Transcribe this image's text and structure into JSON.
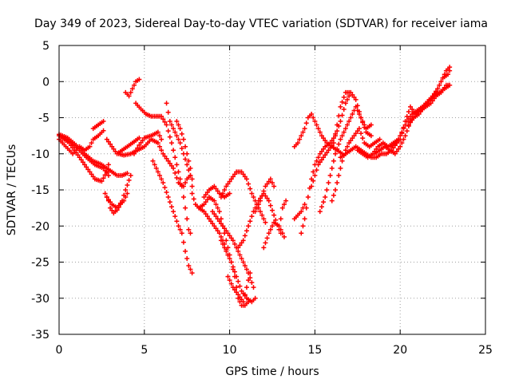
{
  "chart_data": {
    "type": "scatter",
    "title": "Day 349 of 2023, Sidereal Day-to-day VTEC variation (SDTVAR) for receiver iama",
    "xlabel": "GPS time / hours",
    "ylabel": "SDTVAR / TECUs",
    "xlim": [
      0,
      25
    ],
    "ylim": [
      -35,
      5
    ],
    "xticks": [
      0,
      5,
      10,
      15,
      20,
      25
    ],
    "yticks": [
      5,
      0,
      -5,
      -10,
      -15,
      -20,
      -25,
      -30,
      -35
    ],
    "grid": true,
    "marker": "plus",
    "color": "#ff0000",
    "series": [
      {
        "x": [
          0.0,
          0.3,
          0.6,
          0.9,
          1.2,
          1.5,
          1.8,
          2.1,
          2.5,
          2.8,
          2.9
        ],
        "y": [
          -7.5,
          -8.0,
          -8.5,
          -9.5,
          -10.5,
          -11.5,
          -12.5,
          -13.5,
          -13.8,
          -12.5,
          -11.5
        ]
      },
      {
        "x": [
          0.0,
          0.4,
          0.8,
          1.2,
          1.5,
          1.8,
          2.0,
          2.3,
          2.6
        ],
        "y": [
          -8.0,
          -9.0,
          -10.0,
          -9.0,
          -9.5,
          -9.0,
          -8.0,
          -7.5,
          -6.8
        ]
      },
      {
        "x": [
          2.0,
          2.3,
          2.6
        ],
        "y": [
          -6.5,
          -6.0,
          -5.5
        ]
      },
      {
        "x": [
          0.0,
          0.5,
          1.0,
          1.5,
          2.0,
          2.5,
          2.8,
          3.1,
          3.4,
          3.7,
          4.0
        ],
        "y": [
          -7.3,
          -7.8,
          -8.8,
          -10.0,
          -11.0,
          -11.5,
          -12.0,
          -12.5,
          -13.0,
          -13.0,
          -12.7
        ]
      },
      {
        "x": [
          0.1,
          0.6,
          1.1,
          1.6,
          2.1,
          2.6,
          2.9
        ],
        "y": [
          -7.5,
          -8.3,
          -9.3,
          -10.5,
          -11.5,
          -12.0,
          -13.0
        ]
      },
      {
        "x": [
          2.7,
          2.9,
          3.0,
          3.2,
          3.4,
          3.6,
          3.8,
          4.0
        ],
        "y": [
          -15.5,
          -16.5,
          -17.5,
          -18.2,
          -17.8,
          -17.0,
          -16.5,
          -15.5
        ]
      },
      {
        "x": [
          2.8,
          3.1,
          3.4,
          3.7,
          3.9,
          4.2
        ],
        "y": [
          -16.0,
          -17.0,
          -17.5,
          -16.5,
          -15.0,
          -13.0
        ]
      },
      {
        "x": [
          2.8,
          3.1,
          3.4,
          3.7,
          4.0,
          4.3,
          4.7
        ],
        "y": [
          -8.0,
          -9.0,
          -10.0,
          -9.5,
          -9.0,
          -8.5,
          -7.8
        ]
      },
      {
        "x": [
          3.5,
          3.8,
          4.2,
          4.6,
          5.0,
          5.4,
          5.8,
          6.1,
          6.4,
          6.7,
          7.0,
          7.3,
          7.5,
          7.7
        ],
        "y": [
          -10.0,
          -10.2,
          -10.0,
          -9.5,
          -9.0,
          -8.0,
          -8.5,
          -10.0,
          -11.0,
          -12.0,
          -14.0,
          -14.5,
          -13.5,
          -13.0
        ]
      },
      {
        "x": [
          4.4,
          4.7,
          5.0,
          5.4,
          5.8,
          6.0
        ],
        "y": [
          -10.0,
          -8.8,
          -7.8,
          -7.5,
          -7.0,
          -8.0
        ]
      },
      {
        "x": [
          3.9,
          4.1,
          4.3,
          4.5,
          4.7
        ],
        "y": [
          -1.5,
          -2.0,
          -1.0,
          0.0,
          0.3
        ]
      },
      {
        "x": [
          4.5,
          4.8,
          5.1,
          5.4,
          5.7,
          6.0,
          6.3,
          6.6,
          6.9,
          7.2,
          7.4,
          7.6,
          7.7
        ],
        "y": [
          -3.0,
          -3.8,
          -4.5,
          -4.8,
          -4.8,
          -4.8,
          -6.0,
          -8.5,
          -11.5,
          -14.5,
          -17.5,
          -20.5,
          -21.0
        ]
      },
      {
        "x": [
          5.5,
          5.8,
          6.1,
          6.4,
          6.7,
          7.0,
          7.2,
          7.4,
          7.6,
          7.8
        ],
        "y": [
          -11.0,
          -12.5,
          -14.0,
          -16.0,
          -18.0,
          -20.0,
          -21.0,
          -23.5,
          -25.5,
          -26.5
        ]
      },
      {
        "x": [
          6.3,
          6.5,
          6.7,
          6.9,
          7.1,
          7.3,
          7.5,
          7.7,
          7.8
        ],
        "y": [
          -3.0,
          -5.5,
          -6.5,
          -7.5,
          -8.5,
          -10.0,
          -11.5,
          -13.0,
          -14.5
        ]
      },
      {
        "x": [
          6.9,
          7.1,
          7.3,
          7.5,
          7.7,
          7.8
        ],
        "y": [
          -5.5,
          -6.5,
          -8.0,
          -10.0,
          -12.0,
          -13.5
        ]
      },
      {
        "x": [
          7.8,
          8.0,
          8.2,
          8.5,
          8.8,
          9.1,
          9.4,
          9.7,
          9.9
        ],
        "y": [
          -15.5,
          -17.0,
          -17.5,
          -18.0,
          -19.0,
          -20.0,
          -21.0,
          -22.5,
          -24.0
        ]
      },
      {
        "x": [
          8.2,
          8.5,
          8.8,
          9.1,
          9.4,
          9.7,
          10.0,
          10.3,
          10.5,
          10.7,
          10.9,
          11.1
        ],
        "y": [
          -17.5,
          -17.0,
          -16.0,
          -16.5,
          -18.0,
          -21.0,
          -24.0,
          -27.0,
          -30.0,
          -31.0,
          -31.0,
          -30.5
        ]
      },
      {
        "x": [
          8.5,
          8.8,
          9.1,
          9.4,
          9.7,
          10.0
        ],
        "y": [
          -16.0,
          -15.0,
          -14.5,
          -15.5,
          -16.0,
          -15.5
        ]
      },
      {
        "x": [
          9.0,
          9.3,
          9.6,
          9.9,
          10.2,
          10.5,
          10.8,
          11.1,
          11.4
        ],
        "y": [
          -18.0,
          -19.0,
          -20.0,
          -21.0,
          -22.0,
          -23.5,
          -25.0,
          -26.5,
          -28.5
        ]
      },
      {
        "x": [
          9.5,
          9.8,
          10.1,
          10.4,
          10.7,
          11.0,
          11.3,
          11.5
        ],
        "y": [
          -22.0,
          -23.5,
          -25.0,
          -27.0,
          -29.0,
          -30.0,
          -30.5,
          -30.0
        ]
      },
      {
        "x": [
          9.9,
          10.2,
          10.5,
          10.8,
          11.0,
          11.2
        ],
        "y": [
          -27.0,
          -28.5,
          -29.5,
          -30.5,
          -28.5,
          -26.5
        ]
      },
      {
        "x": [
          9.5,
          9.8,
          10.1,
          10.4,
          10.7,
          11.0,
          11.3,
          11.6,
          11.9,
          12.1
        ],
        "y": [
          -16.0,
          -14.5,
          -13.5,
          -12.5,
          -12.5,
          -13.5,
          -15.5,
          -17.0,
          -18.5,
          -19.5
        ]
      },
      {
        "x": [
          10.5,
          10.8,
          11.1,
          11.4,
          11.7,
          12.0,
          12.3,
          12.6,
          12.9,
          13.0
        ],
        "y": [
          -23.0,
          -22.0,
          -20.0,
          -18.0,
          -16.5,
          -15.5,
          -16.5,
          -18.5,
          -20.5,
          -21.0
        ]
      },
      {
        "x": [
          11.5,
          11.8,
          12.1,
          12.4,
          12.6
        ],
        "y": [
          -18.0,
          -16.5,
          -14.5,
          -13.5,
          -14.5
        ]
      },
      {
        "x": [
          12.0,
          12.3,
          12.6,
          12.9,
          13.2
        ],
        "y": [
          -23.0,
          -21.0,
          -19.5,
          -20.0,
          -21.5
        ]
      },
      {
        "x": [
          13.0,
          13.1,
          13.3
        ],
        "y": [
          -19.0,
          -17.5,
          -16.5
        ]
      },
      {
        "x": [
          13.8,
          14.0,
          14.2,
          14.4
        ],
        "y": [
          -19.0,
          -18.5,
          -18.0,
          -17.0
        ]
      },
      {
        "x": [
          13.8,
          14.0,
          14.2,
          14.4,
          14.6,
          14.8,
          15.1,
          15.4,
          15.7,
          16.0,
          16.3,
          16.6
        ],
        "y": [
          -9.0,
          -8.5,
          -7.5,
          -6.5,
          -5.0,
          -4.5,
          -6.0,
          -7.5,
          -8.5,
          -9.0,
          -9.5,
          -10.0
        ]
      },
      {
        "x": [
          14.2,
          14.4,
          14.6,
          14.8,
          15.0,
          15.3,
          15.6,
          15.9,
          16.2,
          16.5,
          16.8,
          17.0
        ],
        "y": [
          -21.0,
          -19.0,
          -16.0,
          -13.5,
          -11.5,
          -10.0,
          -9.0,
          -8.5,
          -7.5,
          -5.5,
          -3.0,
          -2.0
        ]
      },
      {
        "x": [
          14.8,
          15.0,
          15.2,
          15.5,
          15.8,
          16.1,
          16.3,
          16.5,
          16.8,
          17.1,
          17.4,
          17.7,
          18.0,
          18.3
        ],
        "y": [
          -14.5,
          -13.0,
          -11.5,
          -10.5,
          -9.5,
          -8.5,
          -6.0,
          -3.5,
          -1.5,
          -1.5,
          -2.5,
          -5.0,
          -7.0,
          -7.5
        ]
      },
      {
        "x": [
          15.3,
          15.6,
          15.9,
          16.2,
          16.5,
          16.8,
          17.1,
          17.4,
          17.7,
          18.0,
          18.3
        ],
        "y": [
          -18.0,
          -16.0,
          -13.0,
          -10.0,
          -8.0,
          -6.5,
          -5.0,
          -3.5,
          -5.0,
          -6.5,
          -6.0
        ]
      },
      {
        "x": [
          16.0,
          16.2,
          16.4,
          16.6,
          16.8,
          17.0,
          17.3,
          17.6,
          17.9,
          18.2,
          18.5,
          18.8
        ],
        "y": [
          -16.5,
          -15.0,
          -13.0,
          -11.0,
          -9.5,
          -8.5,
          -7.5,
          -6.5,
          -8.5,
          -9.0,
          -8.5,
          -8.0
        ]
      },
      {
        "x": [
          16.5,
          16.8,
          17.1,
          17.4,
          17.7,
          18.0,
          18.3,
          18.6,
          18.9,
          19.2,
          19.5,
          19.8,
          20.0
        ],
        "y": [
          -10.5,
          -10.0,
          -9.5,
          -9.0,
          -9.5,
          -10.0,
          -10.5,
          -10.5,
          -10.0,
          -10.0,
          -9.5,
          -8.5,
          -8.0
        ]
      },
      {
        "x": [
          17.5,
          17.8,
          18.1,
          18.4,
          18.7,
          19.0,
          19.3,
          19.6,
          19.9
        ],
        "y": [
          -9.5,
          -10.0,
          -10.5,
          -10.0,
          -9.0,
          -8.5,
          -9.0,
          -8.5,
          -8.0
        ]
      },
      {
        "x": [
          18.5,
          18.8,
          19.1,
          19.4,
          19.7,
          20.0,
          20.3,
          20.6,
          20.9,
          21.2,
          21.5,
          21.8,
          22.1,
          22.4,
          22.7,
          22.9
        ],
        "y": [
          -10.0,
          -9.5,
          -9.0,
          -9.5,
          -10.0,
          -9.0,
          -7.5,
          -5.5,
          -4.5,
          -4.0,
          -3.0,
          -2.5,
          -1.5,
          0.0,
          1.5,
          2.0
        ]
      },
      {
        "x": [
          19.5,
          19.8,
          20.1,
          20.4,
          20.7,
          21.0,
          21.3,
          21.6,
          21.9,
          22.2,
          22.5,
          22.8,
          22.9
        ],
        "y": [
          -9.0,
          -8.5,
          -7.0,
          -5.5,
          -4.5,
          -4.0,
          -3.5,
          -3.0,
          -2.0,
          -1.0,
          0.5,
          1.0,
          1.5
        ]
      },
      {
        "x": [
          20.0,
          20.3,
          20.6,
          20.9,
          21.2,
          21.5,
          21.8,
          22.1,
          22.4,
          22.7,
          22.9
        ],
        "y": [
          -8.0,
          -5.5,
          -3.5,
          -4.5,
          -4.0,
          -3.5,
          -3.0,
          -2.0,
          -1.5,
          -0.5,
          -0.5
        ]
      },
      {
        "x": [
          20.5,
          20.8,
          21.1,
          21.4,
          21.7,
          22.0,
          22.3,
          22.6,
          22.9
        ],
        "y": [
          -6.0,
          -5.0,
          -4.5,
          -3.5,
          -2.5,
          -2.0,
          -1.5,
          -1.0,
          -0.5
        ]
      }
    ]
  }
}
